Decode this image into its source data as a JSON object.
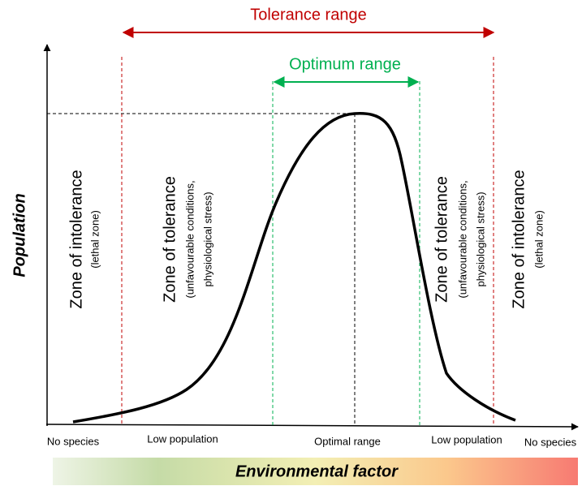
{
  "tolerance_range": "Tolerance range",
  "optimum_range": "Optimum range",
  "y_axis_label": "Population",
  "x_axis_label": "Environmental factor",
  "zones": [
    {
      "title": "Zone of intolerance",
      "lines": [
        "(lethal zone)"
      ]
    },
    {
      "title": "Zone of tolerance",
      "lines": [
        "(unfavourable conditions,",
        "physiological stress)"
      ]
    },
    {
      "title": "Zone of tolerance",
      "lines": [
        "(unfavourable conditions,",
        "physiological stress)"
      ]
    },
    {
      "title": "Zone of intolerance",
      "lines": [
        "(lethal zone)"
      ]
    }
  ],
  "x_labels": [
    "No species",
    "Low population",
    "Optimal range",
    "Low population",
    "No species"
  ]
}
